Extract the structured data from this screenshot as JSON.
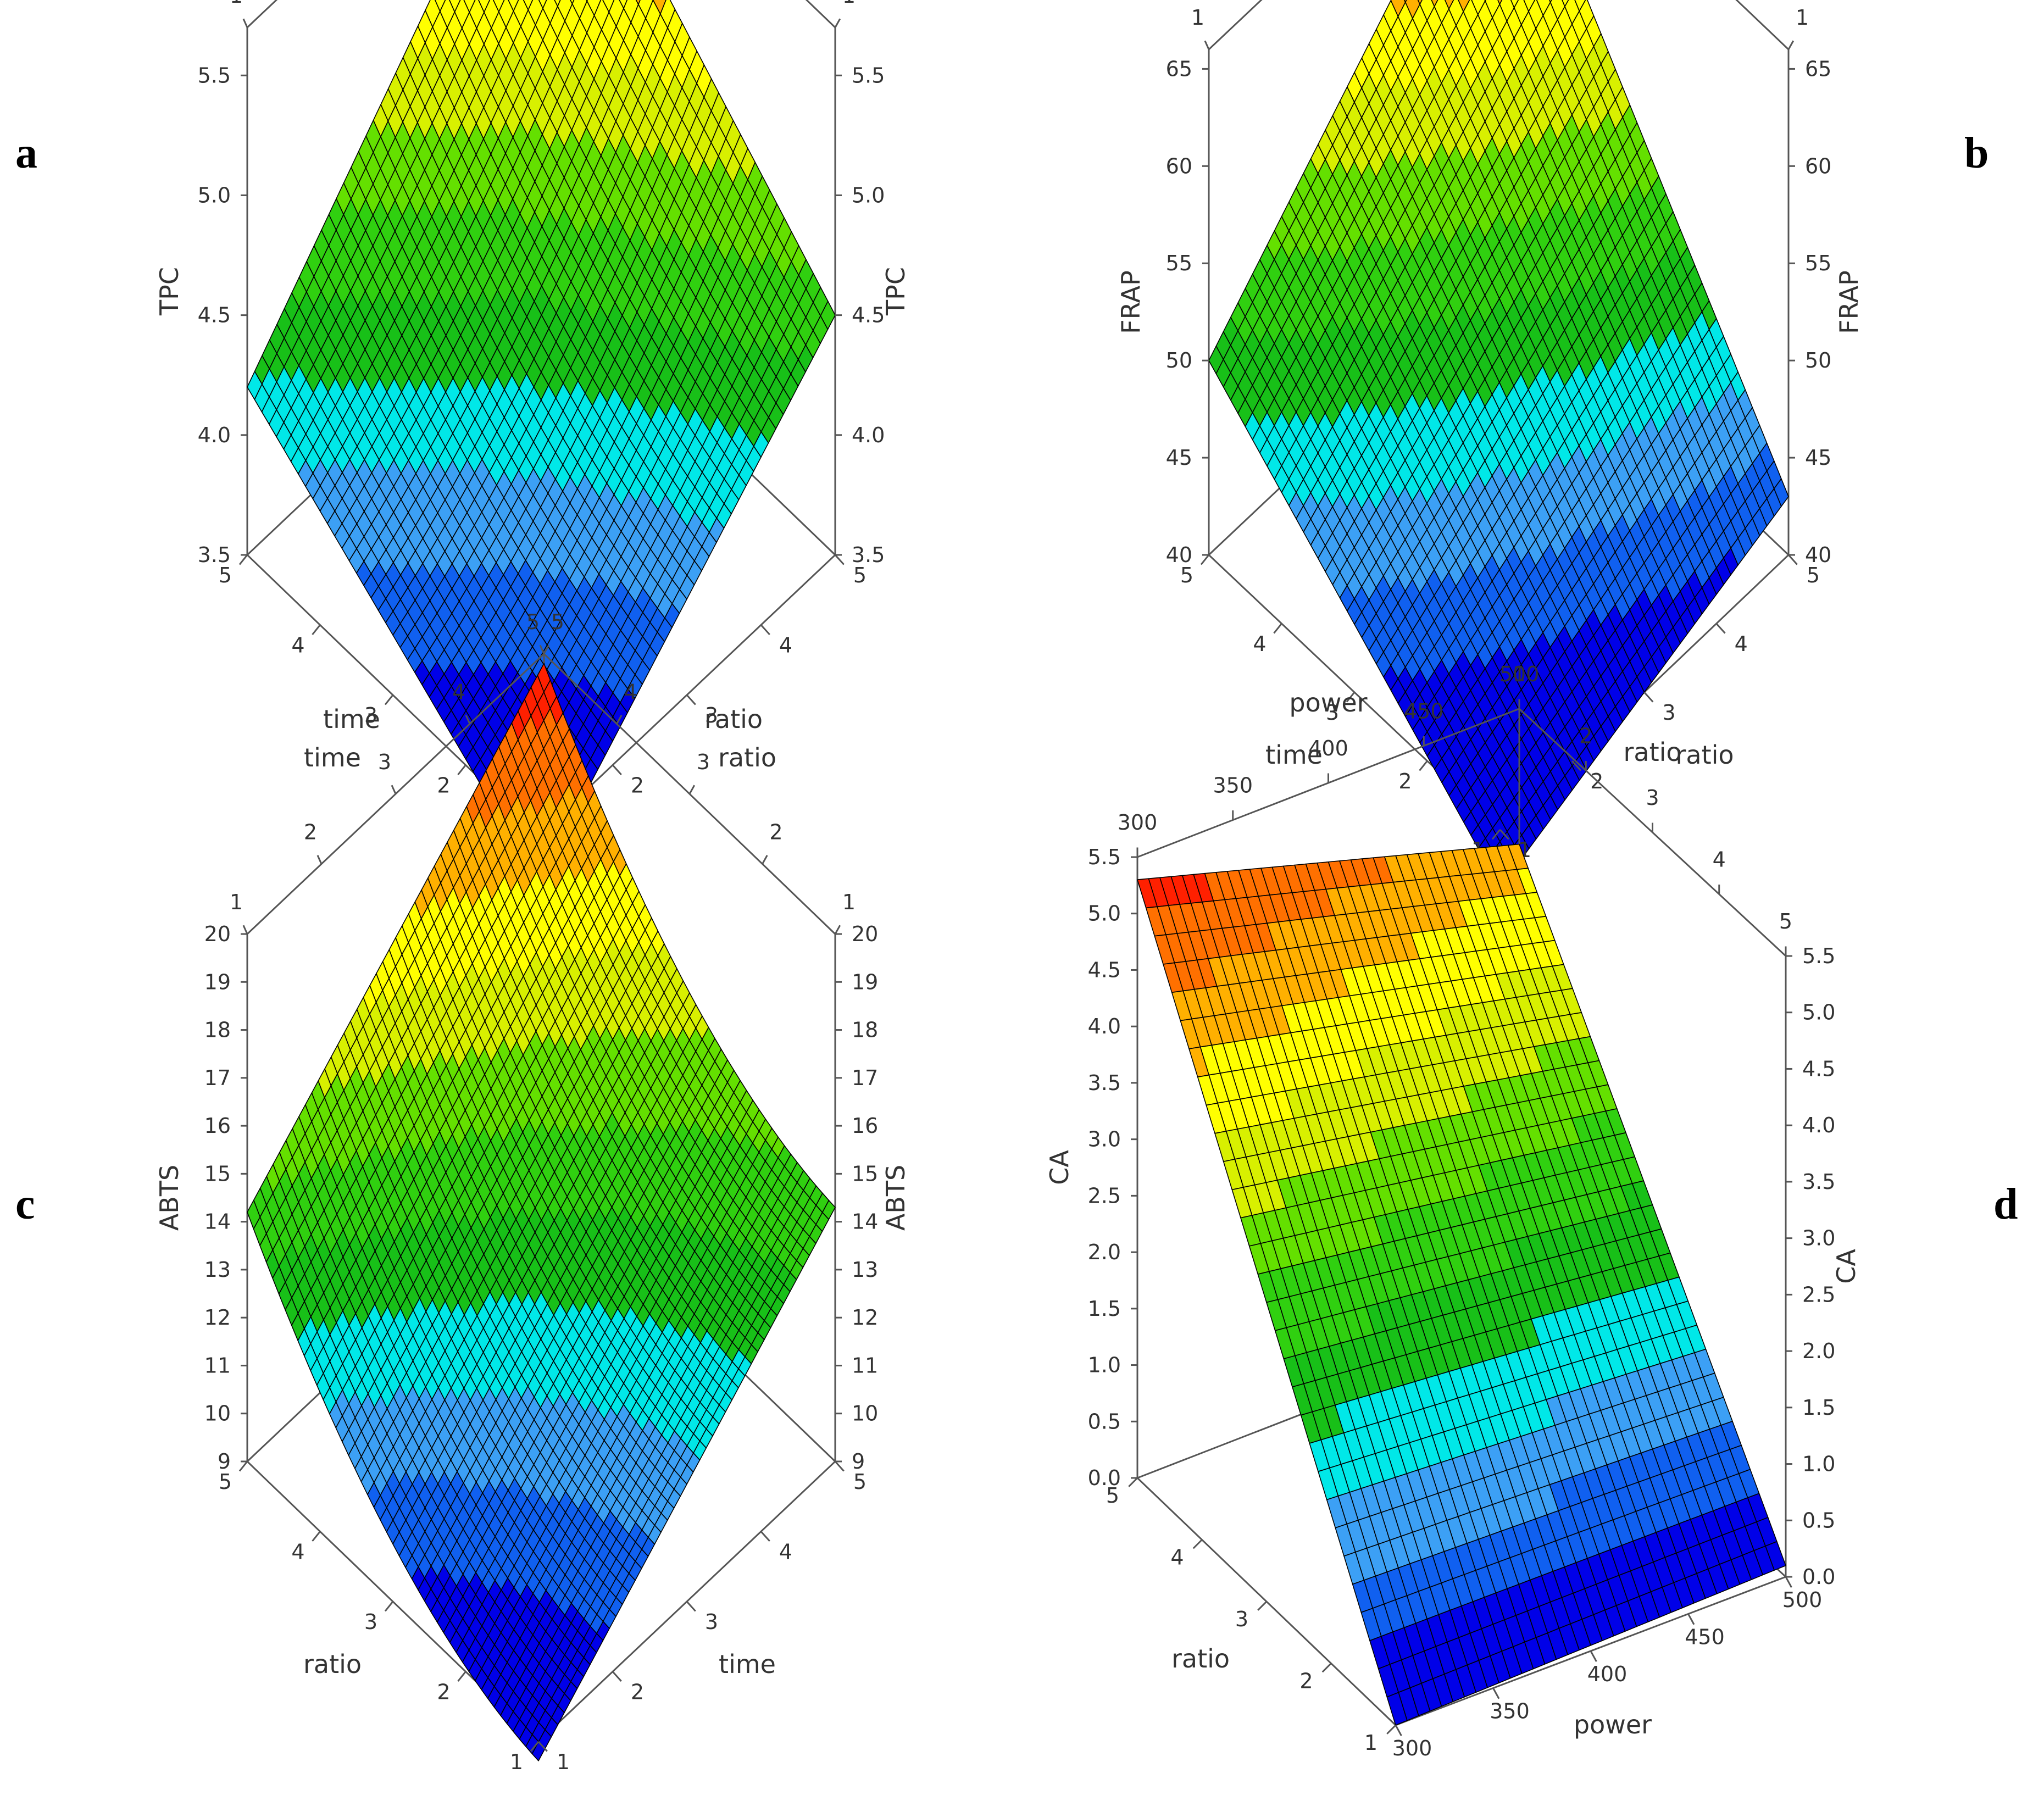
{
  "figure": {
    "panels": [
      "a",
      "b",
      "c",
      "d"
    ]
  },
  "palette": [
    "#0000e8",
    "#1060f0",
    "#3ca0f5",
    "#00e8e8",
    "#18c018",
    "#30d010",
    "#64e000",
    "#d8f000",
    "#ffff00",
    "#ffb000",
    "#ff7000",
    "#ff2000"
  ],
  "chart_data": [
    {
      "panel": "a",
      "type": "surface",
      "x_name": "time",
      "y_name": "ratio",
      "z_name": "TPC",
      "xlim": [
        1,
        5
      ],
      "ylim": [
        1,
        5
      ],
      "zlim": [
        3.5,
        5.7
      ],
      "x_ticks": [
        "1",
        "2",
        "3",
        "4",
        "5"
      ],
      "y_ticks": [
        "1",
        "2",
        "3",
        "4",
        "5"
      ],
      "z_ticks": [
        "3.5",
        "4.0",
        "4.5",
        "5.0",
        "5.5"
      ],
      "corners": {
        "x1y1": 3.3,
        "x5y1": 4.2,
        "x1y5": 4.5,
        "x5y5": 5.65
      },
      "curvature": -0.15
    },
    {
      "panel": "b",
      "type": "surface",
      "x_name": "time",
      "y_name": "ratio",
      "z_name": "FRAP",
      "xlim": [
        1,
        5
      ],
      "ylim": [
        1,
        5
      ],
      "zlim": [
        40,
        66
      ],
      "x_ticks": [
        "1",
        "2",
        "3",
        "4",
        "5"
      ],
      "y_ticks": [
        "1",
        "2",
        "3",
        "4",
        "5"
      ],
      "z_ticks": [
        "40",
        "45",
        "50",
        "55",
        "60",
        "65"
      ],
      "corners": {
        "x1y1": 37,
        "x5y1": 50,
        "x1y5": 43,
        "x5y5": 65.5
      },
      "curvature": 0
    },
    {
      "panel": "c",
      "type": "surface",
      "x_name": "ratio",
      "y_name": "time",
      "z_name": "ABTS",
      "xlim": [
        1,
        5
      ],
      "ylim": [
        1,
        5
      ],
      "zlim": [
        9,
        20
      ],
      "x_ticks": [
        "1",
        "2",
        "3",
        "4",
        "5"
      ],
      "y_ticks": [
        "1",
        "2",
        "3",
        "4",
        "5"
      ],
      "z_ticks": [
        "9",
        "10",
        "11",
        "12",
        "13",
        "14",
        "15",
        "16",
        "17",
        "18",
        "19",
        "20"
      ],
      "corners": {
        "x1y1": 8.6,
        "x5y1": 14.2,
        "x1y5": 14.3,
        "x5y5": 19.8
      },
      "curvature": -1.2
    },
    {
      "panel": "d",
      "type": "surface",
      "x_name": "power",
      "y_name": "ratio",
      "z_name": "CA",
      "xlim": [
        300,
        500
      ],
      "ylim": [
        1,
        5
      ],
      "zlim": [
        0,
        5.5
      ],
      "x_ticks": [
        "300",
        "350",
        "400",
        "450",
        "500"
      ],
      "y_ticks": [
        "1",
        "2",
        "3",
        "4",
        "5"
      ],
      "z_ticks": [
        "0.0",
        "0.5",
        "1.0",
        "1.5",
        "2.0",
        "2.5",
        "3.0",
        "3.5",
        "4.0",
        "4.5",
        "5.0",
        "5.5"
      ],
      "corners": {
        "x300y1": 0.0,
        "x500y1": 0.1,
        "x300y5": 5.3,
        "x500y5": 4.3
      },
      "curvature": 0
    }
  ]
}
